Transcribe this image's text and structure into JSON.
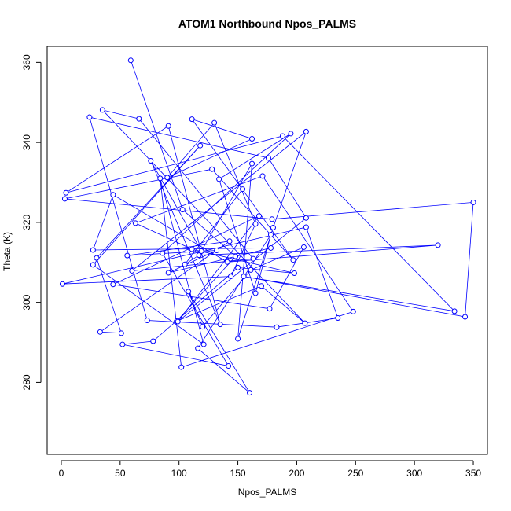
{
  "chart_data": {
    "type": "line",
    "title": "ATOM1 Northbound Npos_PALMS",
    "xlabel": "Npos_PALMS",
    "ylabel": "Theta (K)",
    "xlim": [
      -12,
      362
    ],
    "ylim": [
      262,
      364
    ],
    "x_ticks": [
      0,
      50,
      100,
      150,
      200,
      250,
      300,
      350
    ],
    "y_ticks": [
      280,
      300,
      320,
      340,
      360
    ],
    "x_tick_labels": [
      "0",
      "50",
      "100",
      "150",
      "200",
      "250",
      "300",
      "350"
    ],
    "y_tick_labels": [
      "280",
      "300",
      "320",
      "340",
      "360"
    ],
    "grid": false,
    "legend": "none",
    "series_color": "#0000ff",
    "markers": "open-circle",
    "series": [
      {
        "x": [
          59,
          103,
          148,
          98,
          170,
          207,
          35,
          66,
          163,
          60,
          208,
          180,
          150,
          162,
          119,
          76,
          135,
          91,
          4,
          188,
          334,
          155,
          343,
          350,
          179,
          3,
          128,
          197,
          111,
          162,
          90,
          130,
          165,
          144,
          1,
          208,
          235,
          183,
          73,
          24,
          176,
          208,
          99,
          168,
          44,
          177,
          206,
          161,
          120,
          108,
          160,
          116,
          178,
          165,
          134,
          195,
          86,
          142,
          52,
          78,
          150,
          198,
          111,
          63,
          171,
          248,
          102,
          84,
          121,
          27,
          118,
          30,
          51,
          33,
          143,
          56,
          132,
          91,
          178,
          27,
          44,
          141,
          320,
          117,
          105,
          154
        ],
        "y": [
          360.5,
          323.2,
          311.5,
          295.3,
          304.1,
          294.8,
          348.1,
          345.9,
          310.9,
          307.9,
          342.7,
          318.7,
          290.9,
          334.7,
          312.8,
          335.4,
          294.5,
          344.1,
          327.4,
          341.6,
          297.8,
          306.5,
          296.4,
          325.0,
          320.8,
          325.9,
          333.3,
          310.6,
          345.8,
          340.9,
          331.2,
          344.9,
          319.6,
          306.5,
          304.6,
          318.8,
          296.1,
          293.8,
          295.5,
          346.3,
          336.1,
          321.1,
          295.2,
          321.6,
          304.5,
          298.4,
          313.8,
          308.1,
          293.9,
          302.7,
          277.4,
          288.5,
          316.9,
          302.3,
          330.8,
          342.2,
          312.3,
          284.1,
          289.5,
          290.3,
          308.7,
          307.3,
          313.3,
          319.8,
          331.6,
          297.7,
          283.8,
          331.0,
          289.5,
          309.4,
          339.2,
          311.1,
          292.3,
          292.6,
          315.3,
          311.7,
          313.0,
          307.4,
          313.6,
          313.1,
          326.9,
          310.1,
          314.3,
          311.8,
          309.5,
          328.3
        ]
      }
    ]
  }
}
